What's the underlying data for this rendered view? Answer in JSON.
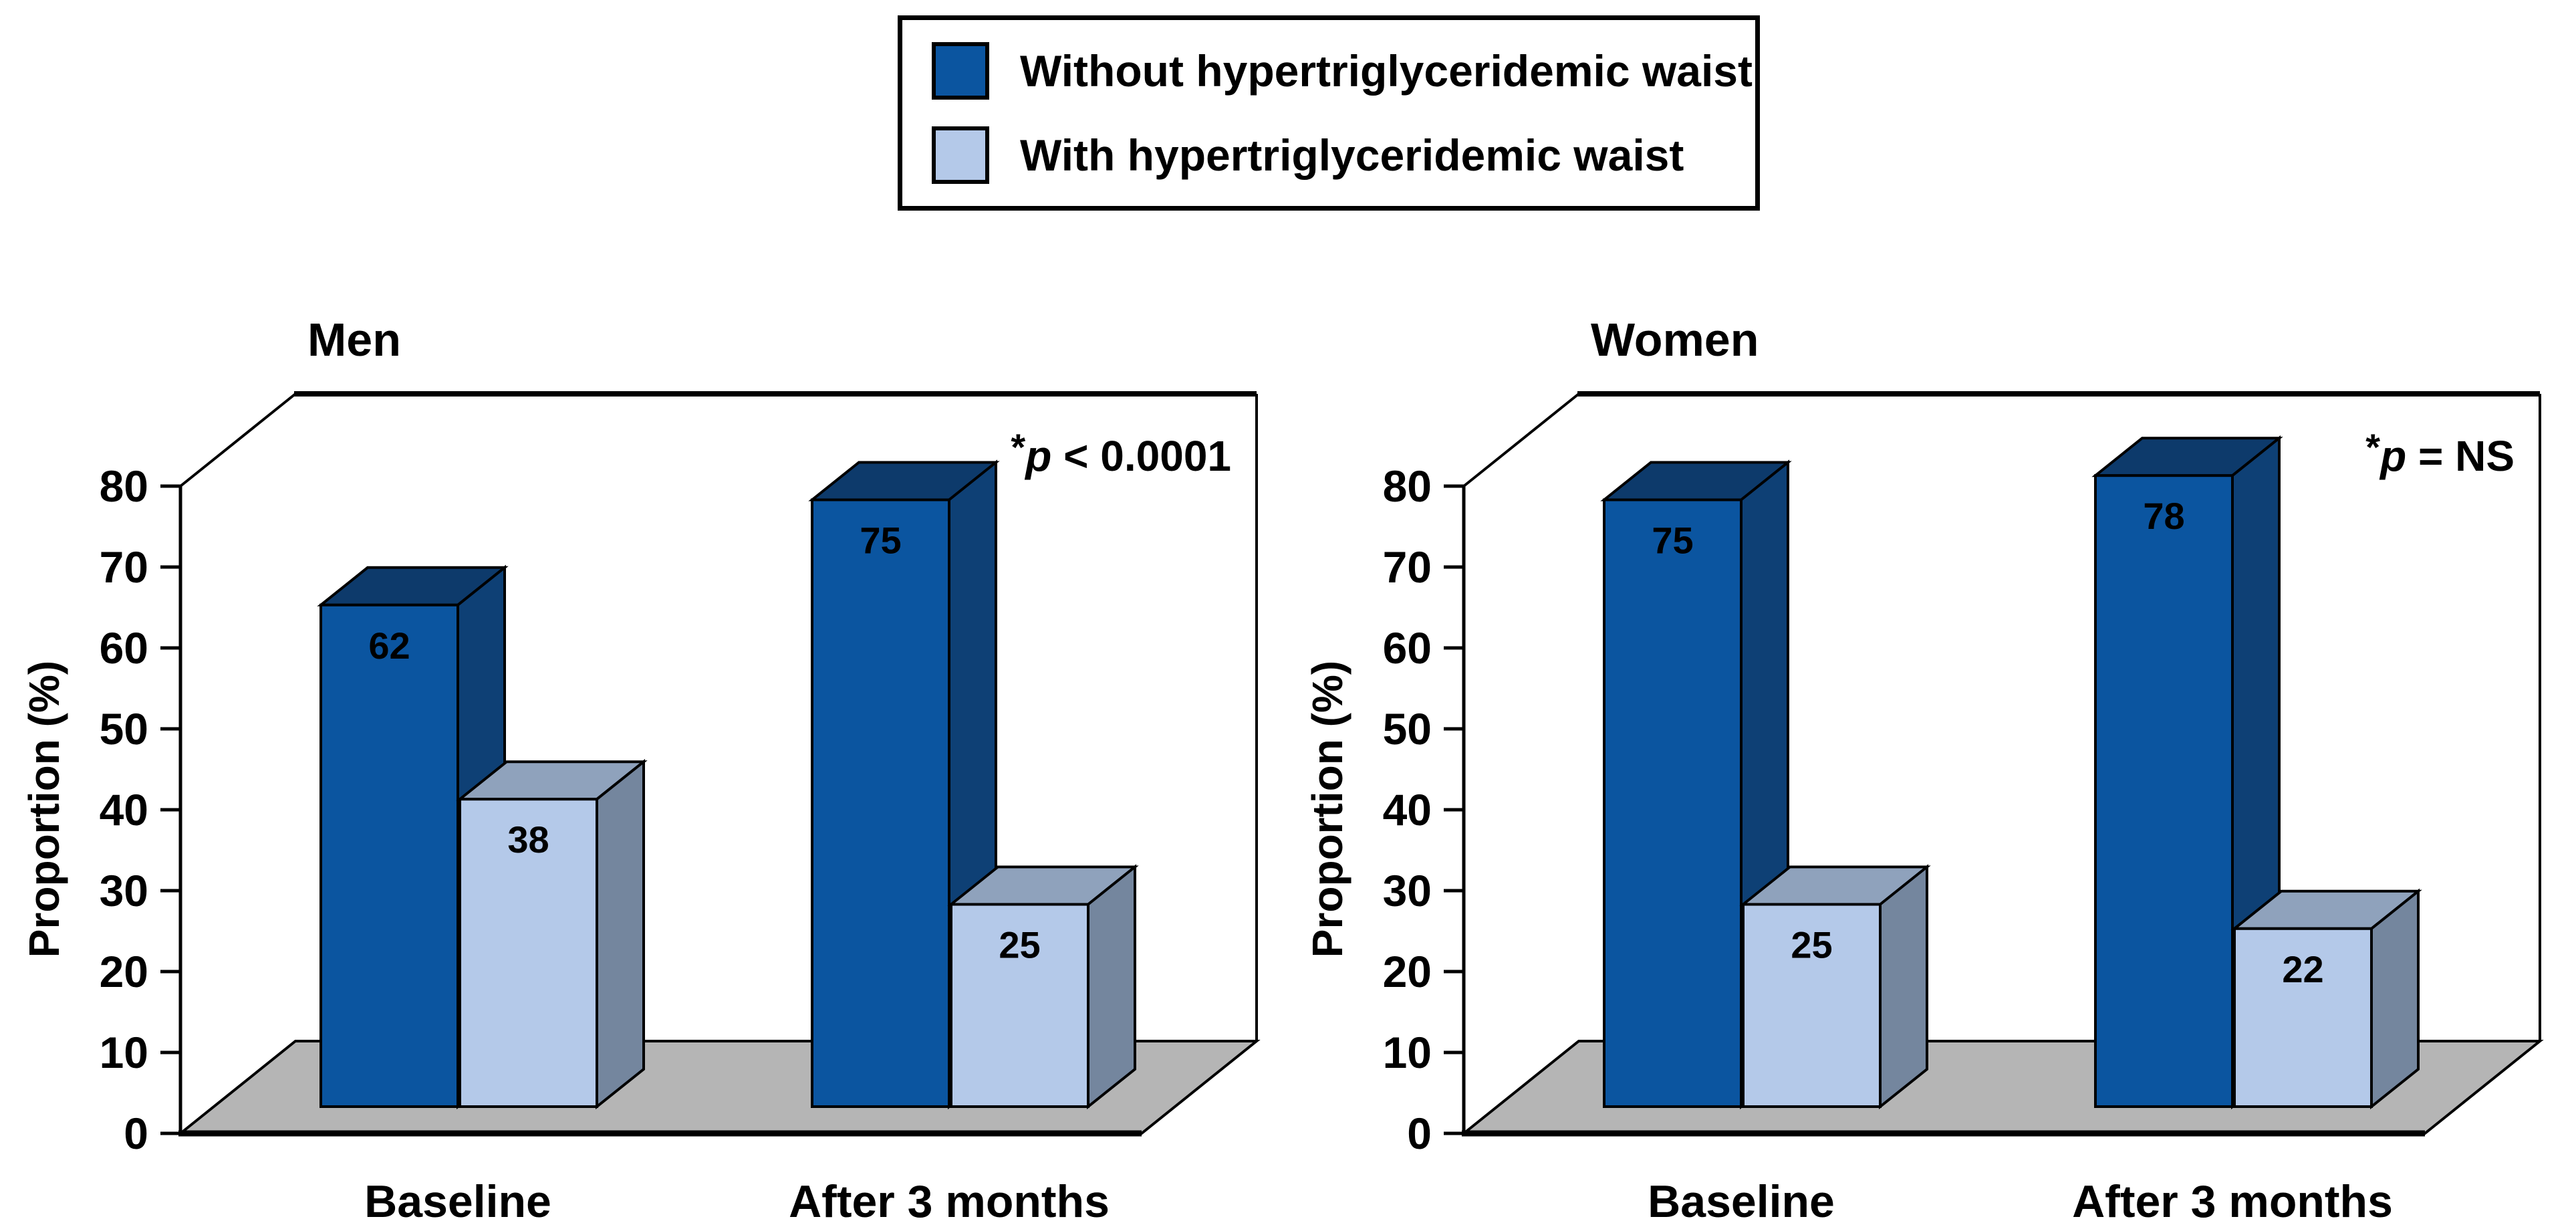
{
  "legend": {
    "items": [
      {
        "label": "Without hypertriglyceridemic waist",
        "series": 0
      },
      {
        "label": "With hypertriglyceridemic waist",
        "series": 1
      }
    ]
  },
  "colors": {
    "series": [
      {
        "front": "#0b55a0",
        "top": "#0d3a6b",
        "side": "#0e4075",
        "label": "#ffffff"
      },
      {
        "front": "#b4c9e9",
        "top": "#8fa2bc",
        "side": "#74869e",
        "label": "#000000"
      }
    ],
    "floor": "#b5b5b5",
    "outline": "#000000",
    "wall": "#ffffff"
  },
  "chart_data": [
    {
      "type": "bar",
      "projection": "3d",
      "title": "Men",
      "xlabel": "",
      "ylabel": "Proportion (%)",
      "ylim": [
        0,
        80
      ],
      "ytick_step": 10,
      "grid": false,
      "legend_position": "top-center",
      "categories": [
        "Baseline",
        "After 3 months"
      ],
      "series": [
        {
          "name": "Without hypertriglyceridemic waist",
          "values": [
            62,
            75
          ]
        },
        {
          "name": "With hypertriglyceridemic waist",
          "values": [
            38,
            25
          ]
        }
      ],
      "annotation": {
        "star": "*",
        "symbol": "p",
        "rest": "< 0.0001"
      }
    },
    {
      "type": "bar",
      "projection": "3d",
      "title": "Women",
      "xlabel": "",
      "ylabel": "Proportion (%)",
      "ylim": [
        0,
        80
      ],
      "ytick_step": 10,
      "grid": false,
      "legend_position": "top-center",
      "categories": [
        "Baseline",
        "After 3 months"
      ],
      "series": [
        {
          "name": "Without hypertriglyceridemic waist",
          "values": [
            75,
            78
          ]
        },
        {
          "name": "With hypertriglyceridemic waist",
          "values": [
            25,
            22
          ]
        }
      ],
      "annotation": {
        "star": "*",
        "symbol": "p",
        "rest": "= NS"
      }
    }
  ]
}
